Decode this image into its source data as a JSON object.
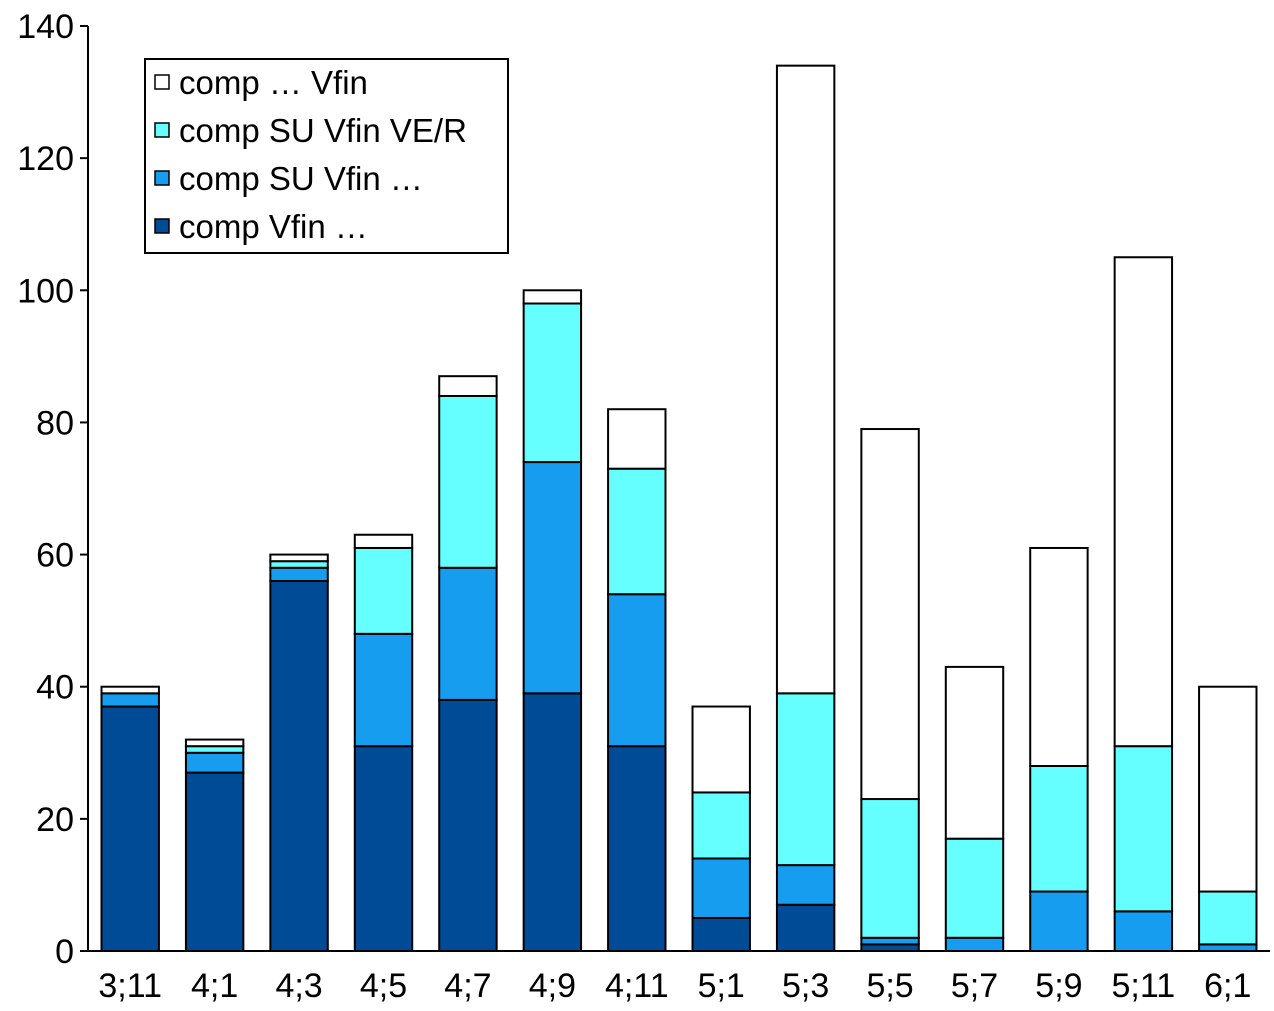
{
  "chart_data": {
    "type": "bar",
    "stacked": true,
    "title": "",
    "xlabel": "",
    "ylabel": "",
    "ylim": [
      0,
      140
    ],
    "yticks": [
      "0",
      "20",
      "40",
      "60",
      "80",
      "100",
      "120",
      "140"
    ],
    "grid": false,
    "legend_position": "top-left",
    "categories": [
      "3;11",
      "4;1",
      "4;3",
      "4;5",
      "4;7",
      "4;9",
      "4;11",
      "5;1",
      "5;3",
      "5;5",
      "5;7",
      "5;9",
      "5;11",
      "6;1"
    ],
    "series": [
      {
        "name": "comp Vfin …",
        "color": "#004b96",
        "values": [
          37,
          27,
          56,
          31,
          38,
          39,
          31,
          5,
          7,
          1,
          0,
          0,
          0,
          0
        ]
      },
      {
        "name": "comp SU Vfin …",
        "color": "#169def",
        "values": [
          2,
          3,
          2,
          17,
          20,
          35,
          23,
          9,
          6,
          1,
          2,
          9,
          6,
          1
        ]
      },
      {
        "name": "comp SU Vfin VE/R",
        "color": "#66ffff",
        "values": [
          0,
          1,
          1,
          13,
          26,
          24,
          19,
          10,
          26,
          21,
          15,
          19,
          25,
          8
        ]
      },
      {
        "name": "comp … Vfin",
        "color": "#ffffff",
        "values": [
          1,
          1,
          1,
          2,
          3,
          2,
          9,
          13,
          95,
          56,
          26,
          33,
          74,
          31
        ]
      }
    ],
    "legend_order": [
      "comp … Vfin",
      "comp SU Vfin VE/R",
      "comp SU Vfin …",
      "comp Vfin …"
    ]
  }
}
